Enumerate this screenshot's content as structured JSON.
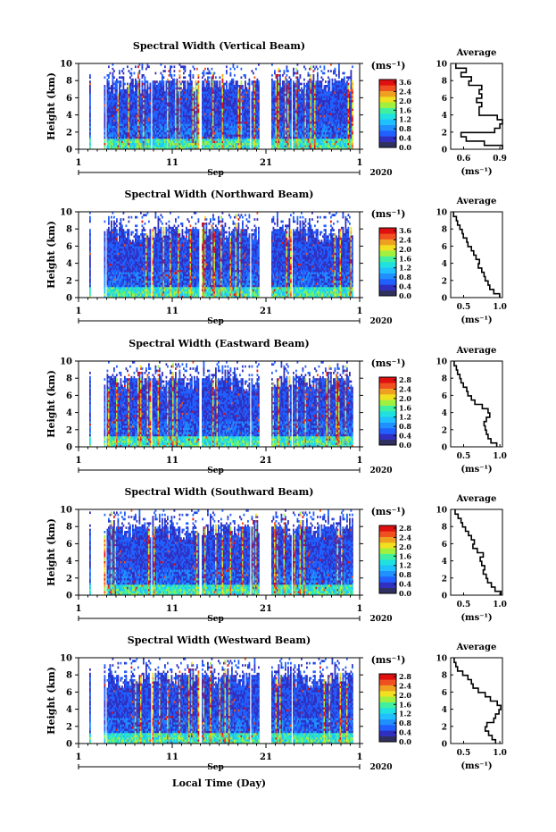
{
  "figure": {
    "xlabel": "Local Time (Day)",
    "x_ticks": [
      "1",
      "11",
      "21",
      "1"
    ],
    "month_label": "Sep",
    "year_label": "2020",
    "avg_title": "Average",
    "ylabel": "Height (km)",
    "unit_label": "(ms⁻¹)"
  },
  "colors": {
    "colormap": [
      "#303060",
      "#3030c0",
      "#2060ff",
      "#2090ff",
      "#20c0ff",
      "#20e0e0",
      "#40f0a0",
      "#a0f040",
      "#f0e020",
      "#f0a020",
      "#f05020",
      "#e01010"
    ]
  },
  "chart_data": [
    {
      "type": "heatmap",
      "title": "Spectral Width (Vertical Beam)",
      "ylim": [
        0,
        10
      ],
      "y_ticks": [
        0,
        2,
        4,
        6,
        8,
        10
      ],
      "colorbar": {
        "ticks": [
          "3.6",
          "2.4",
          "2.0",
          "1.6",
          "1.2",
          "0.8",
          "0.4",
          "0.0"
        ]
      },
      "profile": {
        "title": "Average",
        "xlim": [
          0.5,
          0.9
        ],
        "x_ticks": [
          "0.6",
          "0.9"
        ],
        "xlabel": "(ms⁻¹)",
        "heights": [
          0.2,
          0.7,
          1.2,
          1.7,
          2.2,
          2.7,
          3.2,
          3.7,
          4.2,
          4.7,
          5.2,
          5.7,
          6.2,
          6.7,
          7.2,
          7.7,
          8.2,
          8.7,
          9.2,
          9.7
        ],
        "values": [
          0.9,
          0.76,
          0.62,
          0.58,
          0.84,
          0.88,
          0.9,
          0.86,
          0.72,
          0.72,
          0.74,
          0.7,
          0.74,
          0.72,
          0.74,
          0.64,
          0.66,
          0.58,
          0.62,
          0.54
        ]
      }
    },
    {
      "type": "heatmap",
      "title": "Spectral Width (Northward Beam)",
      "ylim": [
        0,
        10
      ],
      "y_ticks": [
        0,
        2,
        4,
        6,
        8,
        10
      ],
      "colorbar": {
        "ticks": [
          "3.6",
          "2.4",
          "2.0",
          "1.6",
          "1.2",
          "0.8",
          "0.4",
          "0.0"
        ]
      },
      "profile": {
        "title": "Average",
        "xlim": [
          0.3,
          1.2
        ],
        "x_ticks": [
          "0.5",
          "1.0"
        ],
        "xlabel": "(ms⁻¹)",
        "heights": [
          0.2,
          0.7,
          1.2,
          1.7,
          2.2,
          2.7,
          3.2,
          3.7,
          4.2,
          4.7,
          5.2,
          5.7,
          6.2,
          6.7,
          7.2,
          7.7,
          8.2,
          8.7,
          9.2,
          9.7
        ],
        "values": [
          1.15,
          1.05,
          0.98,
          0.95,
          0.9,
          0.88,
          0.84,
          0.78,
          0.8,
          0.74,
          0.7,
          0.66,
          0.6,
          0.58,
          0.52,
          0.5,
          0.46,
          0.42,
          0.4,
          0.35
        ]
      }
    },
    {
      "type": "heatmap",
      "title": "Spectral Width (Eastward Beam)",
      "ylim": [
        0,
        10
      ],
      "y_ticks": [
        0,
        2,
        4,
        6,
        8,
        10
      ],
      "colorbar": {
        "ticks": [
          "2.8",
          "2.4",
          "2.0",
          "1.6",
          "1.2",
          "0.8",
          "0.4",
          "0.0"
        ]
      },
      "profile": {
        "title": "Average",
        "xlim": [
          0.3,
          1.2
        ],
        "x_ticks": [
          "0.5",
          "1.0"
        ],
        "xlabel": "(ms⁻¹)",
        "heights": [
          0.2,
          0.7,
          1.2,
          1.7,
          2.2,
          2.7,
          3.2,
          3.7,
          4.2,
          4.7,
          5.2,
          5.7,
          6.2,
          6.7,
          7.2,
          7.7,
          8.2,
          8.7,
          9.2,
          9.7
        ],
        "values": [
          1.1,
          1.0,
          0.95,
          0.92,
          0.9,
          0.88,
          0.92,
          0.98,
          0.95,
          0.85,
          0.72,
          0.66,
          0.6,
          0.58,
          0.52,
          0.48,
          0.46,
          0.42,
          0.4,
          0.36
        ]
      }
    },
    {
      "type": "heatmap",
      "title": "Spectral Width (Southward Beam)",
      "ylim": [
        0,
        10
      ],
      "y_ticks": [
        0,
        2,
        4,
        6,
        8,
        10
      ],
      "colorbar": {
        "ticks": [
          "2.8",
          "2.4",
          "2.0",
          "1.6",
          "1.2",
          "0.8",
          "0.4",
          "0.0"
        ]
      },
      "profile": {
        "title": "Average",
        "xlim": [
          0.3,
          1.0
        ],
        "x_ticks": [
          "0.5",
          "1.0"
        ],
        "xlabel": "(ms⁻¹)",
        "heights": [
          0.2,
          0.7,
          1.2,
          1.7,
          2.2,
          2.7,
          3.2,
          3.7,
          4.2,
          4.7,
          5.2,
          5.7,
          6.2,
          6.7,
          7.2,
          7.7,
          8.2,
          8.7,
          9.2,
          9.7
        ],
        "values": [
          0.98,
          0.9,
          0.85,
          0.8,
          0.78,
          0.74,
          0.76,
          0.72,
          0.7,
          0.74,
          0.66,
          0.6,
          0.62,
          0.58,
          0.54,
          0.5,
          0.46,
          0.44,
          0.4,
          0.36
        ]
      }
    },
    {
      "type": "heatmap",
      "title": "Spectral Width (Westward Beam)",
      "ylim": [
        0,
        10
      ],
      "y_ticks": [
        0,
        2,
        4,
        6,
        8,
        10
      ],
      "colorbar": {
        "ticks": [
          "2.8",
          "2.4",
          "2.0",
          "1.6",
          "1.2",
          "0.8",
          "0.4",
          "0.0"
        ]
      },
      "profile": {
        "title": "Average",
        "xlim": [
          0.4,
          1.0
        ],
        "x_ticks": [
          "0.5",
          "1.0"
        ],
        "xlabel": "(ms⁻¹)",
        "heights": [
          0.2,
          0.7,
          1.2,
          1.7,
          2.2,
          2.7,
          3.2,
          3.7,
          4.2,
          4.7,
          5.2,
          5.7,
          6.2,
          6.7,
          7.2,
          7.7,
          8.2,
          8.7,
          9.2,
          9.7
        ],
        "values": [
          0.92,
          0.88,
          0.84,
          0.8,
          0.82,
          0.9,
          0.92,
          0.96,
          0.98,
          0.94,
          0.86,
          0.8,
          0.72,
          0.66,
          0.64,
          0.6,
          0.54,
          0.48,
          0.46,
          0.44
        ]
      }
    }
  ]
}
